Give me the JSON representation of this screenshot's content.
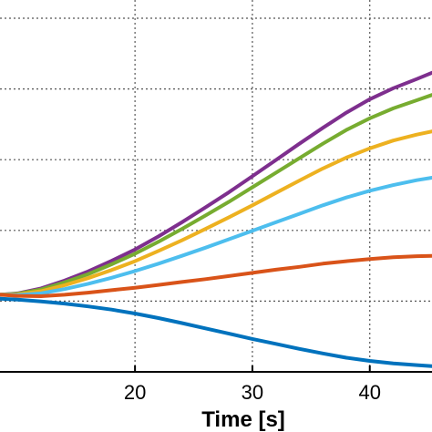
{
  "chart_data": {
    "type": "line",
    "xlabel": "Time [s]",
    "ylabel": "",
    "title": "",
    "xlim": [
      8.5,
      45.3
    ],
    "ylim": [
      0,
      1
    ],
    "x_ticks": [
      20,
      30,
      40
    ],
    "x_tick_labels": [
      "20",
      "30",
      "40"
    ],
    "y_gridlines": [
      0.2,
      0.4,
      0.6,
      0.8,
      1.0
    ],
    "grid": true,
    "legend": "none",
    "x": [
      8.5,
      10,
      12,
      14,
      16,
      18,
      20,
      22,
      24,
      26,
      28,
      30,
      32,
      34,
      36,
      38,
      40,
      42,
      44,
      45.3
    ],
    "series": [
      {
        "color": "#7E2F8E",
        "values": [
          0.218,
          0.222,
          0.236,
          0.258,
          0.284,
          0.314,
          0.346,
          0.383,
          0.423,
          0.465,
          0.508,
          0.553,
          0.599,
          0.645,
          0.69,
          0.733,
          0.771,
          0.802,
          0.828,
          0.846
        ]
      },
      {
        "color": "#77AC30",
        "values": [
          0.218,
          0.221,
          0.233,
          0.253,
          0.276,
          0.304,
          0.334,
          0.368,
          0.404,
          0.442,
          0.481,
          0.522,
          0.563,
          0.604,
          0.645,
          0.684,
          0.717,
          0.745,
          0.768,
          0.783
        ]
      },
      {
        "color": "#EDB120",
        "values": [
          0.218,
          0.219,
          0.228,
          0.245,
          0.265,
          0.288,
          0.313,
          0.342,
          0.372,
          0.404,
          0.437,
          0.471,
          0.506,
          0.541,
          0.575,
          0.606,
          0.632,
          0.654,
          0.671,
          0.68
        ]
      },
      {
        "color": "#4DBEEE",
        "values": [
          0.218,
          0.217,
          0.222,
          0.234,
          0.249,
          0.266,
          0.285,
          0.306,
          0.328,
          0.351,
          0.375,
          0.399,
          0.423,
          0.447,
          0.471,
          0.493,
          0.512,
          0.528,
          0.542,
          0.549
        ]
      },
      {
        "color": "#D95319",
        "values": [
          0.218,
          0.215,
          0.214,
          0.218,
          0.224,
          0.231,
          0.238,
          0.246,
          0.254,
          0.262,
          0.271,
          0.28,
          0.289,
          0.297,
          0.306,
          0.313,
          0.319,
          0.324,
          0.327,
          0.328
        ]
      },
      {
        "color": "#0072BD",
        "values": [
          0.207,
          0.204,
          0.199,
          0.193,
          0.185,
          0.176,
          0.165,
          0.152,
          0.138,
          0.123,
          0.108,
          0.093,
          0.079,
          0.065,
          0.052,
          0.04,
          0.031,
          0.024,
          0.019,
          0.016
        ]
      }
    ]
  }
}
